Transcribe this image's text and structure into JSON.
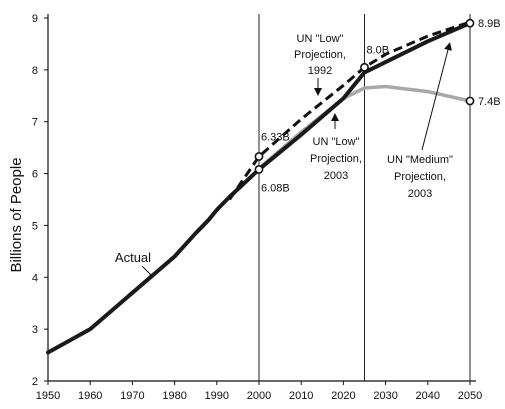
{
  "chart_data": {
    "type": "line",
    "title": "",
    "xlabel": "",
    "ylabel": "Billions of People",
    "xlim": [
      1950,
      2050
    ],
    "ylim": [
      2,
      9
    ],
    "x_ticks": [
      "1950",
      "1960",
      "1970",
      "1980",
      "1990",
      "2000",
      "2010",
      "2020",
      "2030",
      "2040",
      "2050"
    ],
    "y_ticks": [
      "2",
      "3",
      "4",
      "5",
      "6",
      "7",
      "8",
      "9"
    ],
    "grid": false,
    "vertical_reference_lines": [
      2000,
      2025,
      2050
    ],
    "series": [
      {
        "name": "Actual",
        "style": "solid-thick",
        "color": "#1a1a1a",
        "points": [
          [
            1950,
            2.55
          ],
          [
            1960,
            3.0
          ],
          [
            1970,
            3.7
          ],
          [
            1980,
            4.4
          ],
          [
            1985,
            4.85
          ],
          [
            1988,
            5.1
          ],
          [
            1990,
            5.3
          ],
          [
            1993,
            5.55
          ],
          [
            1995,
            5.7
          ],
          [
            2000,
            6.08
          ]
        ]
      },
      {
        "name": "UN \"Low\" Projection, 2003",
        "style": "solid-thick",
        "color": "#1a1a1a",
        "points": [
          [
            2000,
            6.08
          ],
          [
            2010,
            6.75
          ],
          [
            2020,
            7.45
          ],
          [
            2025,
            7.95
          ],
          [
            2030,
            8.15
          ],
          [
            2040,
            8.55
          ],
          [
            2050,
            8.9
          ]
        ]
      },
      {
        "name": "UN \"Low\" Projection, 1992",
        "style": "dashed",
        "color": "#111111",
        "points": [
          [
            1993,
            5.5
          ],
          [
            2000,
            6.33
          ],
          [
            2010,
            7.05
          ],
          [
            2020,
            7.7
          ],
          [
            2025,
            8.05
          ],
          [
            2030,
            8.3
          ],
          [
            2040,
            8.65
          ],
          [
            2050,
            8.92
          ]
        ]
      },
      {
        "name": "UN \"Medium\" Projection, 2003",
        "style": "solid-gray",
        "color": "#a8a8a8",
        "points": [
          [
            2000,
            6.1
          ],
          [
            2010,
            6.8
          ],
          [
            2020,
            7.45
          ],
          [
            2025,
            7.65
          ],
          [
            2030,
            7.68
          ],
          [
            2040,
            7.58
          ],
          [
            2050,
            7.4
          ]
        ]
      }
    ],
    "markers": [
      {
        "x": 2000,
        "y": 6.33,
        "label": "6.33B"
      },
      {
        "x": 2000,
        "y": 6.08,
        "label": "6.08B"
      },
      {
        "x": 2025,
        "y": 8.05,
        "label": "8.0B"
      },
      {
        "x": 2050,
        "y": 8.9,
        "label": "8.9B"
      },
      {
        "x": 2050,
        "y": 7.4,
        "label": "7.4B"
      }
    ],
    "annotations": [
      {
        "lines": [
          "UN \"Low\"",
          "Projection,",
          "1992"
        ]
      },
      {
        "lines": [
          "UN \"Low\"",
          "Projection,",
          "2003"
        ]
      },
      {
        "lines": [
          "UN \"Medium\"",
          "Projection,",
          "2003"
        ]
      },
      {
        "lines": [
          "Actual"
        ]
      }
    ]
  }
}
